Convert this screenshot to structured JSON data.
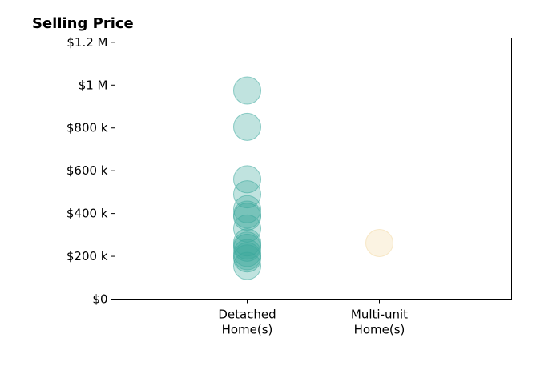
{
  "chart_data": {
    "type": "scatter",
    "title": "Selling Price",
    "xlabel": "",
    "ylabel": "",
    "categories": [
      "Detached\nHome(s)",
      "Multi-unit\nHome(s)"
    ],
    "xlim": [
      -1,
      2
    ],
    "ylim": [
      0,
      1220000
    ],
    "y_ticks": [
      {
        "value": 0,
        "label": "$0"
      },
      {
        "value": 200000,
        "label": "$200 k"
      },
      {
        "value": 400000,
        "label": "$400 k"
      },
      {
        "value": 600000,
        "label": "$600 k"
      },
      {
        "value": 800000,
        "label": "$800 k"
      },
      {
        "value": 1000000,
        "label": "$1 M"
      },
      {
        "value": 1200000,
        "label": "$1.2 M"
      }
    ],
    "grid": false,
    "series": [
      {
        "category": "Detached\nHome(s)",
        "color": "#3aa89c",
        "values": [
          975000,
          805000,
          560000,
          490000,
          420000,
          395000,
          385000,
          330000,
          265000,
          250000,
          240000,
          215000,
          200000,
          190000,
          155000
        ]
      },
      {
        "category": "Multi-unit\nHome(s)",
        "color": "#f3d9a4",
        "values": [
          262000
        ]
      }
    ]
  }
}
